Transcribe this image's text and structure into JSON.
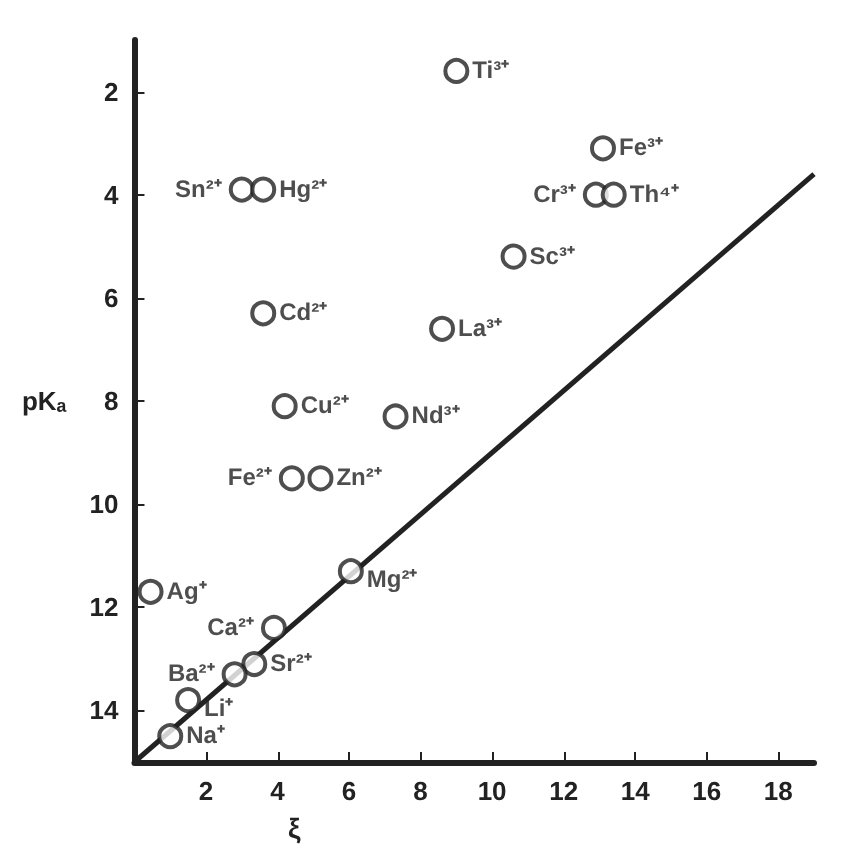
{
  "chart_data": {
    "type": "scatter",
    "xlabel": "ξ",
    "ylabel": "pKₐ",
    "xlim": [
      0,
      19
    ],
    "ylim": [
      15,
      1
    ],
    "xticks": [
      2,
      4,
      6,
      8,
      10,
      12,
      14,
      16,
      18
    ],
    "yticks": [
      2,
      4,
      6,
      8,
      10,
      12,
      14
    ],
    "grid": false,
    "marker": "circle",
    "series": [
      {
        "color": "#222222",
        "x": [
          9.0,
          13.1,
          12.9,
          13.4,
          10.6,
          8.6,
          7.3,
          3.0,
          3.6,
          3.6,
          4.2,
          4.4,
          5.2,
          0.45,
          6.05,
          3.9,
          3.35,
          2.8,
          1.5,
          1.0
        ],
        "values": [
          1.6,
          3.1,
          4.0,
          4.0,
          5.2,
          6.6,
          8.3,
          3.9,
          3.9,
          6.3,
          8.1,
          9.5,
          9.5,
          11.7,
          11.3,
          12.4,
          13.1,
          13.3,
          13.8,
          14.5
        ]
      },
      {
        "type": "line",
        "color": "#222222",
        "marker": "none",
        "x": [
          0,
          19
        ],
        "values": [
          15,
          3.6
        ]
      }
    ],
    "annotations": [
      {
        "text": "Ti³⁺",
        "x": 9.0,
        "y": 1.6
      },
      {
        "text": "Fe³⁺",
        "x": 13.1,
        "y": 3.1
      },
      {
        "text": "Cr³⁺",
        "x": 12.9,
        "y": 4.0
      },
      {
        "text": "Th⁴⁺",
        "x": 13.4,
        "y": 4.0
      },
      {
        "text": "Sc³⁺",
        "x": 10.6,
        "y": 5.2
      },
      {
        "text": "La³⁺",
        "x": 8.6,
        "y": 6.6
      },
      {
        "text": "Nd³⁺",
        "x": 7.3,
        "y": 8.3
      },
      {
        "text": "Sn²⁺",
        "x": 3.0,
        "y": 3.9
      },
      {
        "text": "Hg²⁺",
        "x": 3.6,
        "y": 3.9
      },
      {
        "text": "Cd²⁺",
        "x": 3.6,
        "y": 6.3
      },
      {
        "text": "Cu²⁺",
        "x": 4.2,
        "y": 8.1
      },
      {
        "text": "Fe²⁺",
        "x": 4.4,
        "y": 9.5
      },
      {
        "text": "Zn²⁺",
        "x": 5.2,
        "y": 9.5
      },
      {
        "text": "Ag⁺",
        "x": 0.45,
        "y": 11.7
      },
      {
        "text": "Mg²⁺",
        "x": 6.05,
        "y": 11.3
      },
      {
        "text": "Ca²⁺",
        "x": 3.9,
        "y": 12.4
      },
      {
        "text": "Sr²⁺",
        "x": 3.35,
        "y": 13.1
      },
      {
        "text": "Ba²⁺",
        "x": 2.8,
        "y": 13.3
      },
      {
        "text": "Li⁺",
        "x": 1.5,
        "y": 13.8
      },
      {
        "text": "Na⁺",
        "x": 1.0,
        "y": 14.5
      }
    ]
  }
}
